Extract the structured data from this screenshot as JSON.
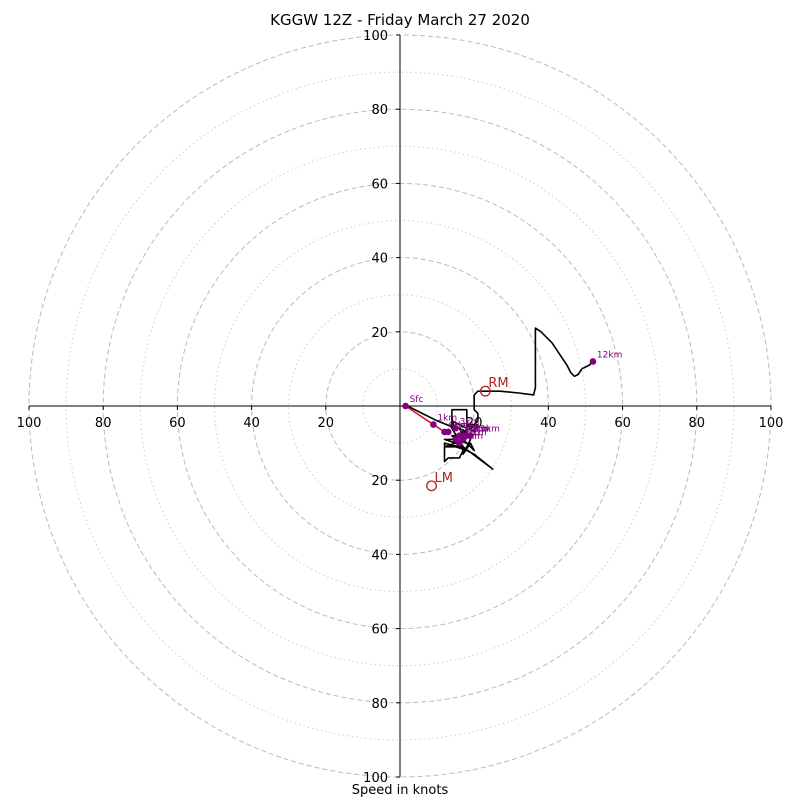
{
  "chart_data": {
    "type": "hodograph",
    "title": "KGGW 12Z - Friday March 27 2020",
    "xlabel": "Speed in knots",
    "range": [
      -100,
      100
    ],
    "ring_major": [
      20,
      40,
      60,
      80,
      100
    ],
    "ring_minor": [
      10,
      30,
      50,
      70,
      90
    ],
    "tick_labels_x": [
      "100",
      "80",
      "60",
      "40",
      "20",
      "20",
      "40",
      "60",
      "80",
      "100"
    ],
    "tick_values_x": [
      -100,
      -80,
      -60,
      -40,
      -20,
      20,
      40,
      60,
      80,
      100
    ],
    "tick_labels_y": [
      "100",
      "80",
      "60",
      "40",
      "20",
      "20",
      "40",
      "60",
      "80",
      "100"
    ],
    "tick_values_y": [
      100,
      80,
      60,
      40,
      20,
      -20,
      -40,
      -60,
      -80,
      -100
    ],
    "colors": {
      "trace": "#000000",
      "marker": "#800080",
      "storm": "#b22222",
      "shear": "#dc143c",
      "grid": "#bbbbbb"
    },
    "trace": [
      [
        2,
        0
      ],
      [
        10,
        -4
      ],
      [
        15,
        -6
      ],
      [
        14,
        -4
      ],
      [
        16,
        -5
      ],
      [
        18,
        -6
      ],
      [
        17,
        -8
      ],
      [
        16,
        -6
      ],
      [
        18,
        -7
      ],
      [
        19,
        -9
      ],
      [
        18,
        -11
      ],
      [
        17,
        -13
      ],
      [
        19,
        -10
      ],
      [
        20,
        -12
      ],
      [
        18,
        -10
      ],
      [
        17,
        -9
      ],
      [
        15,
        -10
      ],
      [
        12,
        -11
      ],
      [
        15,
        -11
      ],
      [
        18,
        -12
      ],
      [
        15,
        -10
      ],
      [
        12,
        -9
      ],
      [
        14,
        -9
      ],
      [
        18,
        -10
      ],
      [
        16,
        -8
      ],
      [
        15,
        -9
      ],
      [
        14,
        -8
      ],
      [
        16,
        -8
      ],
      [
        17,
        -7
      ],
      [
        19,
        -6
      ],
      [
        18,
        -5
      ],
      [
        20,
        -7
      ],
      [
        21,
        -5
      ],
      [
        19,
        -6
      ],
      [
        17,
        -7
      ],
      [
        15,
        -8
      ],
      [
        16,
        -10
      ],
      [
        17,
        -12
      ],
      [
        16,
        -14
      ],
      [
        13,
        -14
      ],
      [
        12,
        -15
      ],
      [
        12,
        -10
      ],
      [
        16,
        -11
      ],
      [
        20,
        -13
      ],
      [
        25,
        -17
      ],
      [
        17,
        -11
      ],
      [
        14,
        -6
      ],
      [
        14,
        -1
      ],
      [
        18,
        -1
      ],
      [
        18,
        -5
      ],
      [
        20,
        -5
      ],
      [
        21,
        -4
      ],
      [
        21,
        -2
      ],
      [
        20,
        -1
      ],
      [
        20,
        1
      ],
      [
        20,
        3
      ],
      [
        21,
        4
      ],
      [
        23,
        4
      ],
      [
        27,
        4
      ],
      [
        32,
        3.5
      ],
      [
        36,
        3
      ],
      [
        36.5,
        5
      ],
      [
        36.5,
        10
      ],
      [
        36.5,
        15
      ],
      [
        36.5,
        21
      ],
      [
        38,
        20
      ],
      [
        41,
        17
      ],
      [
        43,
        14
      ],
      [
        45,
        11
      ],
      [
        46,
        9
      ],
      [
        47,
        8
      ],
      [
        48,
        8.5
      ],
      [
        49,
        10
      ],
      [
        50,
        10.5
      ],
      [
        51,
        11
      ],
      [
        52,
        12
      ]
    ],
    "markers": [
      {
        "label": "Sfc",
        "u": 1.5,
        "v": 0
      },
      {
        "label": "1km",
        "u": 9,
        "v": -5
      },
      {
        "label": "2km",
        "u": 13,
        "v": -7
      },
      {
        "label": "3km",
        "u": 15,
        "v": -6
      },
      {
        "label": "4km",
        "u": 17,
        "v": -8
      },
      {
        "label": "5km",
        "u": 15,
        "v": -9
      },
      {
        "label": "6km",
        "u": 12,
        "v": -7
      },
      {
        "label": "7km",
        "u": 17,
        "v": -9
      },
      {
        "label": "8km",
        "u": 18,
        "v": -8
      },
      {
        "label": "9km",
        "u": 16,
        "v": -10
      },
      {
        "label": "10km",
        "u": 16,
        "v": -8
      },
      {
        "label": "11km",
        "u": 19,
        "v": -8
      },
      {
        "label": "12km",
        "u": 52,
        "v": 12
      }
    ],
    "storm_motion": [
      {
        "label": "RM",
        "u": 23,
        "v": 4
      },
      {
        "label": "LM",
        "u": 8.5,
        "v": -21.5
      }
    ],
    "shear_line": [
      [
        1.5,
        0
      ],
      [
        12,
        -7
      ]
    ]
  }
}
